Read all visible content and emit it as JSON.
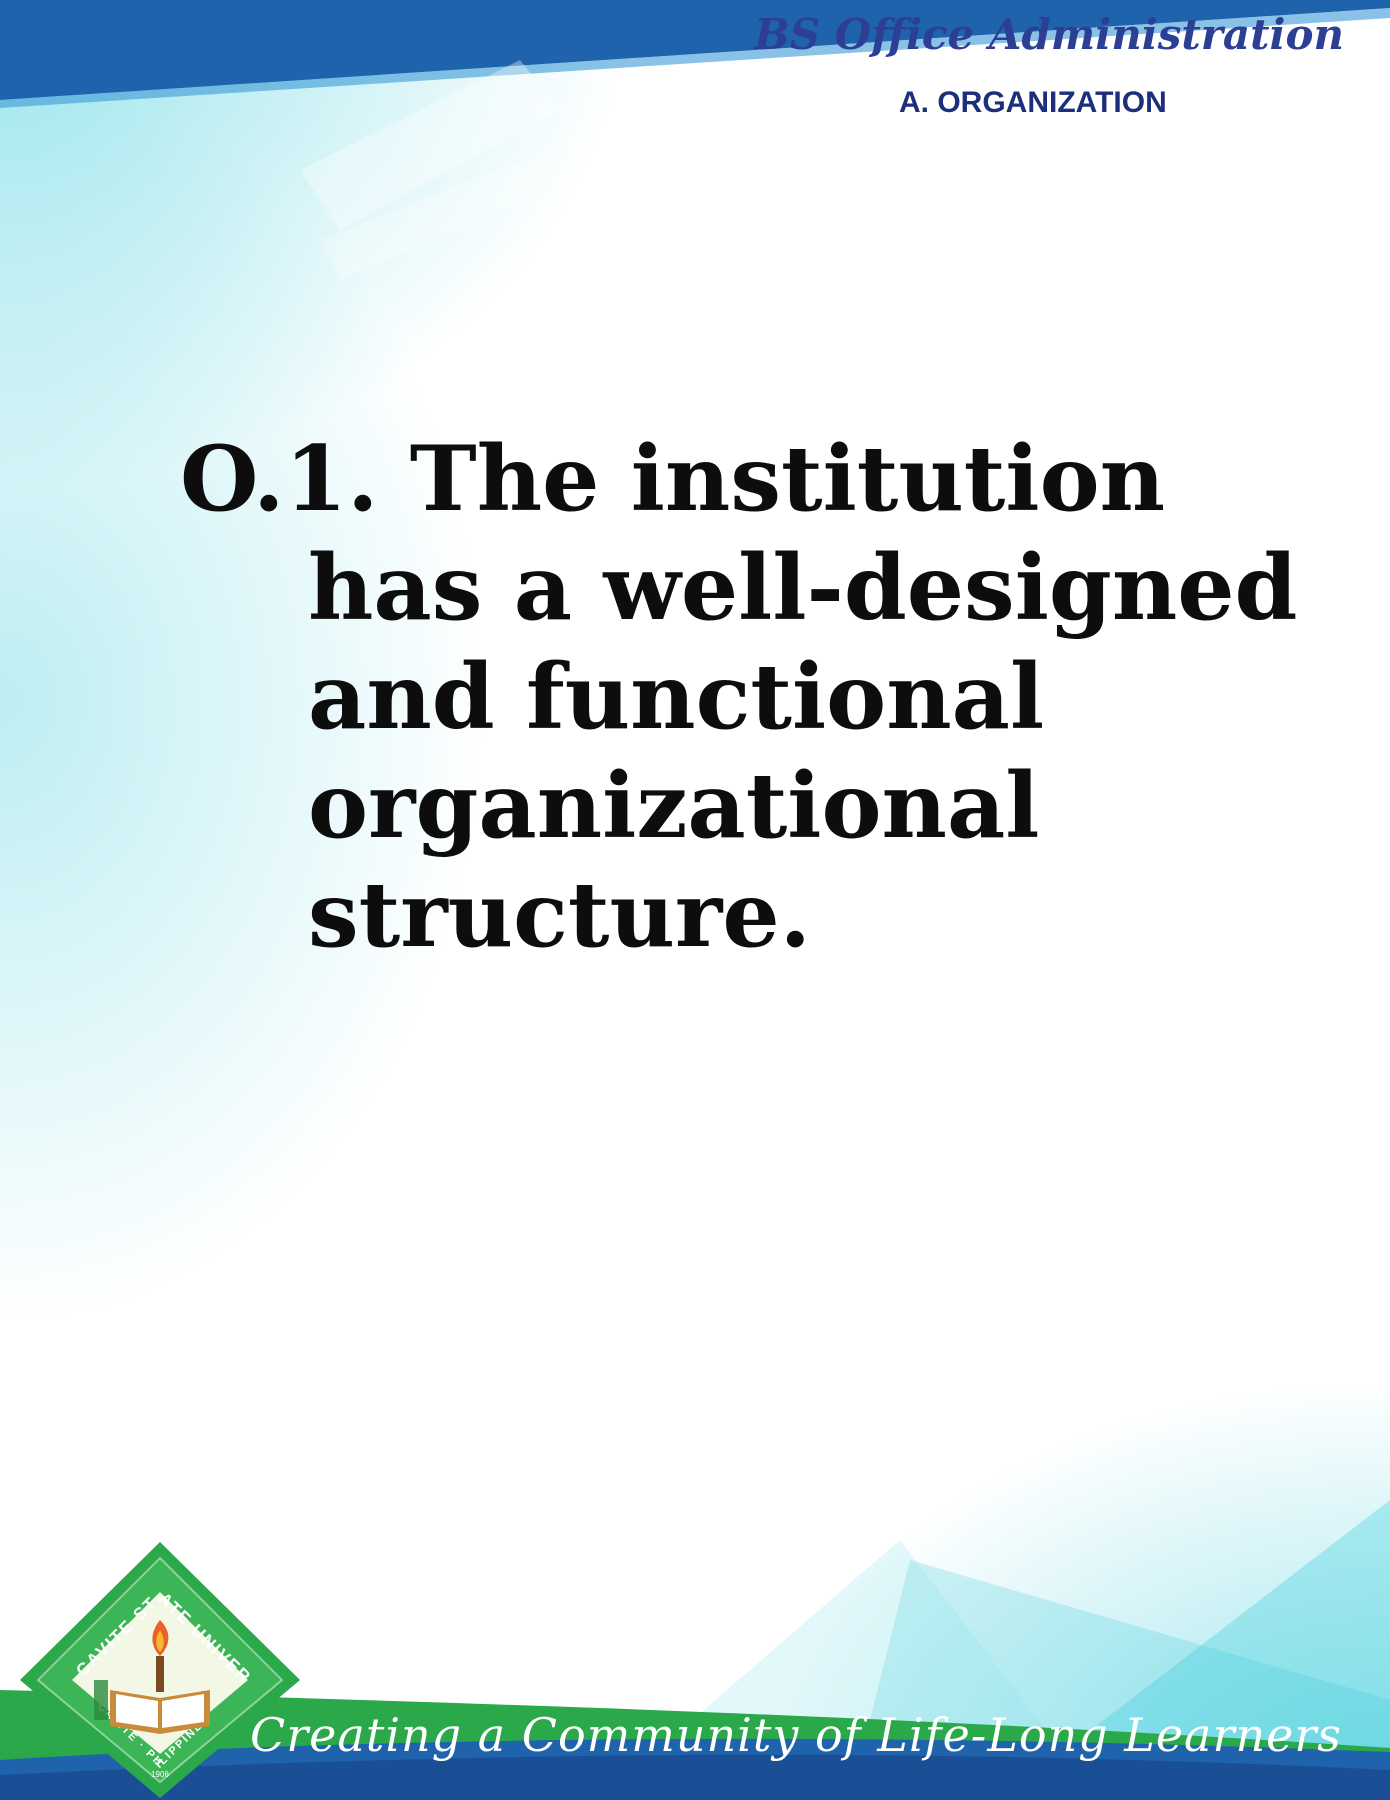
{
  "header": {
    "program_title": "BS Office Administration",
    "section_label": "A. ORGANIZATION"
  },
  "main": {
    "statement": "O.1. The institution has a well-designed and functional organizational structure."
  },
  "footer": {
    "tagline": "Creating a Community of Life-Long Learners",
    "seal": {
      "ring_text_top": "CAVITE STATE UNIVERSITY",
      "ring_text_bottom": "CAVITE · PHILIPPINES",
      "year": "1906"
    }
  },
  "colors": {
    "header_blue": "#1f63ad",
    "title_navy": "#2d3f94",
    "footer_green": "#2aa84a",
    "accent_cyan": "#40cddc"
  }
}
